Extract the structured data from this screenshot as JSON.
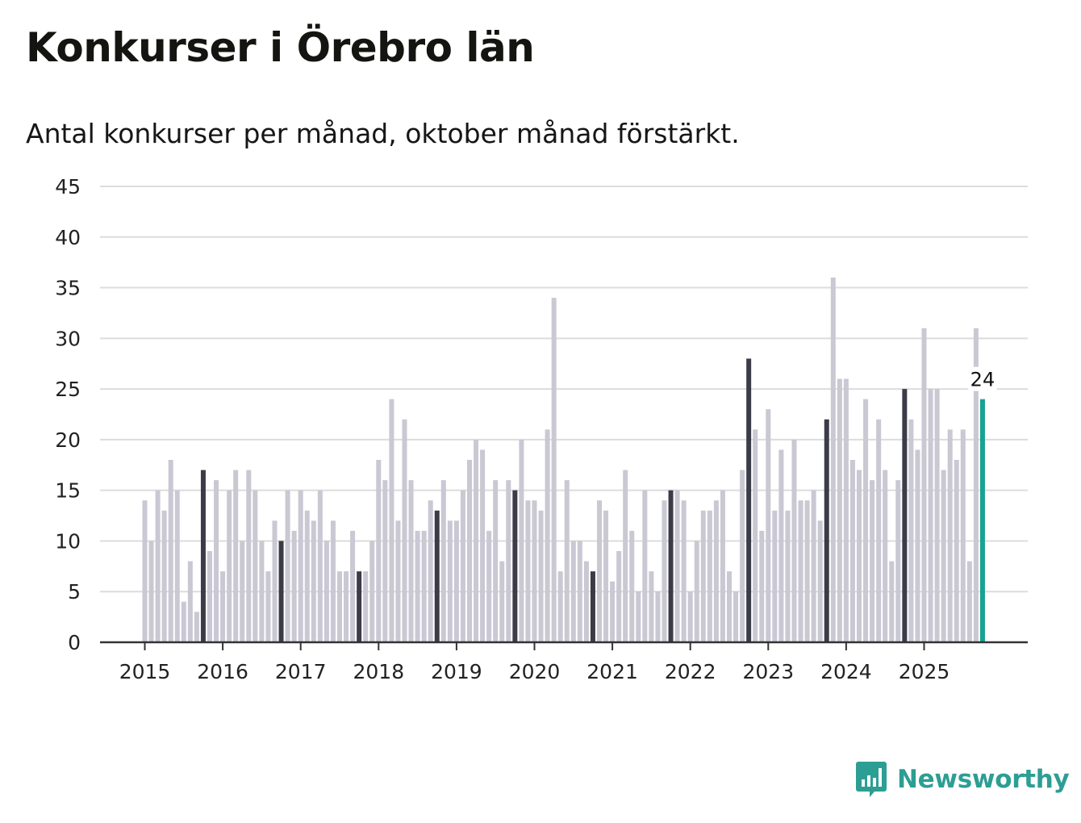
{
  "title": "Konkurser i Örebro län",
  "subtitle": "Antal konkurser per månad, oktober månad förstärkt.",
  "brand": {
    "name": "Newsworthy",
    "icon": "newsworthy-logo-icon",
    "color": "#2d9e93"
  },
  "chart_data": {
    "type": "bar",
    "title": "Konkurser i Örebro län",
    "xlabel": "",
    "ylabel": "",
    "ylim": [
      0,
      45
    ],
    "yticks": [
      0,
      5,
      10,
      15,
      20,
      25,
      30,
      35,
      40,
      45
    ],
    "xtick_labels": [
      "2015",
      "2016",
      "2017",
      "2018",
      "2019",
      "2020",
      "2021",
      "2022",
      "2023",
      "2024",
      "2025"
    ],
    "start": {
      "year": 2015,
      "month": 1
    },
    "highlight_month": 10,
    "annotation": {
      "label": "24",
      "value": 24
    },
    "colors": {
      "normal": "#c9c8d3",
      "highlight": "#3c3c48",
      "last": "#16a391",
      "grid": "#dcdcdc",
      "axis": "#333333"
    },
    "values": [
      14,
      10,
      15,
      13,
      18,
      15,
      4,
      8,
      3,
      17,
      9,
      16,
      7,
      15,
      17,
      10,
      17,
      15,
      10,
      7,
      12,
      10,
      15,
      11,
      15,
      13,
      12,
      15,
      10,
      12,
      7,
      7,
      11,
      7,
      7,
      10,
      18,
      16,
      24,
      12,
      22,
      16,
      11,
      11,
      14,
      13,
      16,
      12,
      12,
      15,
      18,
      20,
      19,
      11,
      16,
      8,
      16,
      15,
      20,
      14,
      14,
      13,
      21,
      34,
      7,
      16,
      10,
      10,
      8,
      7,
      14,
      13,
      6,
      9,
      17,
      11,
      5,
      15,
      7,
      5,
      14,
      15,
      15,
      14,
      5,
      10,
      13,
      13,
      14,
      15,
      7,
      5,
      17,
      28,
      21,
      11,
      23,
      13,
      19,
      13,
      20,
      14,
      14,
      15,
      12,
      22,
      36,
      26,
      26,
      18,
      17,
      24,
      16,
      22,
      17,
      8,
      16,
      25,
      22,
      19,
      31,
      25,
      25,
      17,
      21,
      18,
      21,
      8,
      31,
      24
    ]
  }
}
